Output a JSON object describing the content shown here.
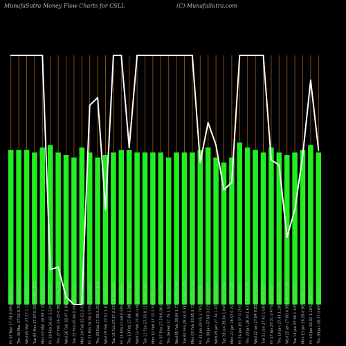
{
  "header": {
    "left_text": "MunafaSutra  Money Flow  Charts for CSLL",
    "right_text": "(C) MunafaSutra.com"
  },
  "colors": {
    "background": "#000000",
    "bar": "#22ee22",
    "grid": "#8a4a12",
    "line": "#ffffff",
    "text": "#bbbbbb"
  },
  "chart_data": {
    "type": "bar",
    "title": "Money Flow Charts for CSLL",
    "grid": true,
    "categories": [
      "Fri 07 Mar 27.74 0.65% 8.69% 117",
      "Thu 06 Mar 27.56 0.70% 7.93% 112",
      "Wed 05 Mar 27.37 1.11% 6.53% 118",
      "Tue 04 Mar 27.07 0.35% 6.96% 126",
      "Mon 03 Mar 26.98 1.25% 5.49% 142",
      "Fri 28 Feb 26.65 1.53% 7.29% 141",
      "Thu 27 Feb 26.25 0.85% 6.33% 122",
      "Wed 26 Feb 26.47 1.94% 6.05% 108",
      "Tue 25 Feb 25.96 0.20% 8.32% 117",
      "Mon 24 Feb 26.01 2.07% 4.44% 145",
      "Fri 21 Feb 26.56 3.73% 3.75% 133",
      "Thu 20 Feb 27.59 0.21% 5.21% 118",
      "Wed 19 Feb 27.53 1.67% 6.30% 114",
      "Tue 18 Feb 27.07 2.20% 5.18% 116",
      "Fri 14 Feb 27.68 0.59% 6.01% 120",
      "Thu 13 Feb 27.84 1.38% 6.43% 128",
      "Wed 12 Feb 27.46 0.40% 5.76% 121",
      "Tue 11 Feb 27.35 0.12% 6.84% 135",
      "Mon 10 Feb 27.32 1.53% 5.92% 129",
      "Fri 07 Feb 27.74 0.04% 6.21% 114",
      "Thu 06 Feb 27.75 1.02% 5.95% 122",
      "Wed 05 Feb 28.04 1.77% 4.64% 106",
      "Tue 04 Feb 28.54 0.38% 5.26% 114",
      "Mon 03 Feb 28.65 0.72% 6.31% 126",
      "Fri 31 Jan 28.45 2.79% 5.05% 144",
      "Thu 30 Jan 27.68 0.22% 4.93% 119",
      "Wed 29 Jan 27.74 1.07% 5.43% 123",
      "Tue 28 Jan 28.04 1.84% 4.31% 106",
      "Mon 27 Jan 28.57 0.71% 6.41% 138",
      "Fri 24 Jan 28.37 0.25% 5.11% 124",
      "Thu 23 Jan 28.30 1.63% 6.25% 130",
      "Wed 22 Jan 27.84 0.85% 5.67% 118",
      "Tue 21 Jan 27.61 1.08% 4.92% 127",
      "Fri 17 Jan 27.31 0.47% 6.13% 120",
      "Thu 16 Jan 27.44 1.29% 5.84% 131",
      "Wed 15 Jan 27.80 0.58% 4.73% 116",
      "Tue 14 Jan 27.96 1.14% 6.42% 125",
      "Mon 13 Jan 28.28 0.92% 5.18% 119",
      "Fri 10 Jan 28.02 1.26% 4.84% 112",
      "Thu 09 Jan 28.37 0.65% 7.02% 121"
    ],
    "series": [
      {
        "type": "bar",
        "values": [
          0.62,
          0.62,
          0.62,
          0.61,
          0.63,
          0.64,
          0.61,
          0.6,
          0.59,
          0.63,
          0.61,
          0.59,
          0.6,
          0.61,
          0.62,
          0.62,
          0.61,
          0.61,
          0.61,
          0.61,
          0.59,
          0.61,
          0.61,
          0.61,
          0.62,
          0.63,
          0.59,
          0.57,
          0.59,
          0.65,
          0.63,
          0.62,
          0.61,
          0.63,
          0.61,
          0.6,
          0.61,
          0.62,
          0.64,
          0.61
        ]
      },
      {
        "type": "line",
        "values": [
          1.0,
          1.0,
          1.0,
          1.0,
          1.0,
          0.14,
          0.15,
          0.03,
          0.0,
          0.0,
          0.8,
          0.83,
          0.38,
          1.0,
          1.0,
          0.63,
          1.0,
          1.0,
          1.0,
          1.0,
          1.0,
          1.0,
          1.0,
          1.0,
          0.57,
          0.73,
          0.64,
          0.46,
          0.49,
          1.0,
          1.0,
          1.0,
          1.0,
          0.58,
          0.56,
          0.27,
          0.38,
          0.6,
          0.9,
          0.62
        ]
      }
    ],
    "ylim": [
      0,
      1
    ]
  }
}
